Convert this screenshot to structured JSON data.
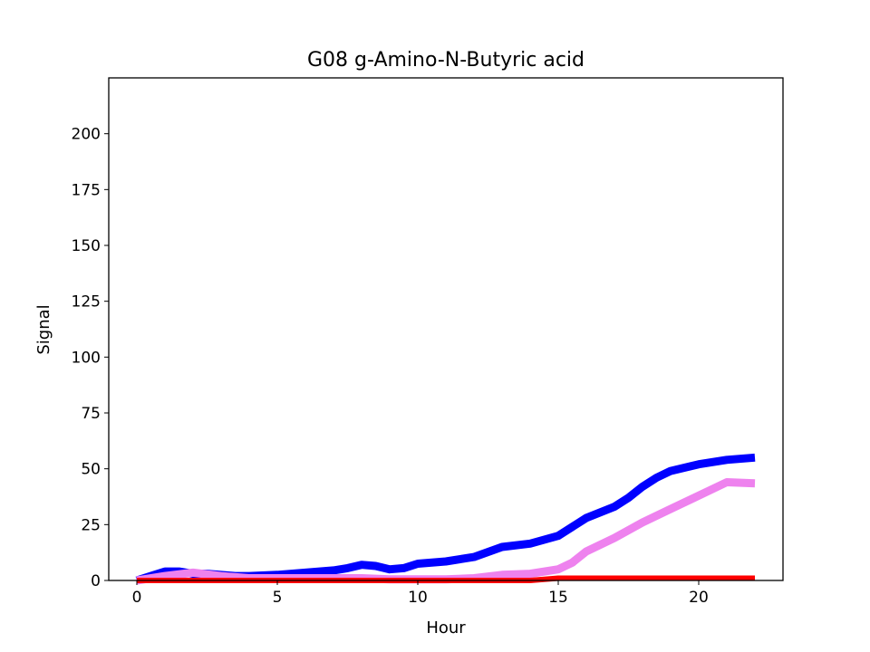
{
  "chart_data": {
    "type": "line",
    "title": "G08 g-Amino-N-Butyric acid",
    "xlabel": "Hour",
    "ylabel": "Signal",
    "xlim": [
      -1.0,
      23.0
    ],
    "ylim": [
      0,
      225
    ],
    "xticks": [
      0,
      5,
      10,
      15,
      20
    ],
    "yticks": [
      0,
      25,
      50,
      75,
      100,
      125,
      150,
      175,
      200
    ],
    "grid": false,
    "legend": "none",
    "series": [
      {
        "color": "#0000ff",
        "x": [
          0,
          0.5,
          1,
          1.5,
          2,
          2.5,
          3,
          3.5,
          4,
          5,
          6,
          7,
          7.5,
          8,
          8.5,
          9,
          9.5,
          10,
          11,
          12,
          13,
          14,
          15,
          15.5,
          16,
          17,
          17.5,
          18,
          18.5,
          19,
          20,
          21,
          22
        ],
        "y": [
          0,
          2,
          4,
          4,
          3,
          3,
          2.5,
          2,
          2,
          2.5,
          3.5,
          4.5,
          5.5,
          7,
          6.5,
          5,
          5.5,
          7.5,
          8.5,
          10.5,
          15,
          16.5,
          20,
          24,
          28,
          33,
          37,
          42,
          46,
          49,
          52,
          54,
          55
        ]
      },
      {
        "color": "#ee82ee",
        "x": [
          0,
          1,
          2,
          3,
          4,
          5,
          6,
          7,
          8,
          9,
          10,
          11,
          12,
          13,
          14,
          15,
          15.5,
          16,
          17,
          18,
          19,
          20,
          21,
          22
        ],
        "y": [
          0,
          2,
          3.5,
          2,
          1,
          1,
          1,
          1,
          1,
          0.5,
          0.5,
          0.5,
          1,
          2.5,
          3,
          5,
          8,
          13,
          19,
          26,
          32,
          38,
          44,
          43.5
        ]
      },
      {
        "color": "#ff0000",
        "x": [
          0,
          14,
          15,
          22
        ],
        "y": [
          0,
          0,
          1,
          1
        ]
      }
    ]
  }
}
